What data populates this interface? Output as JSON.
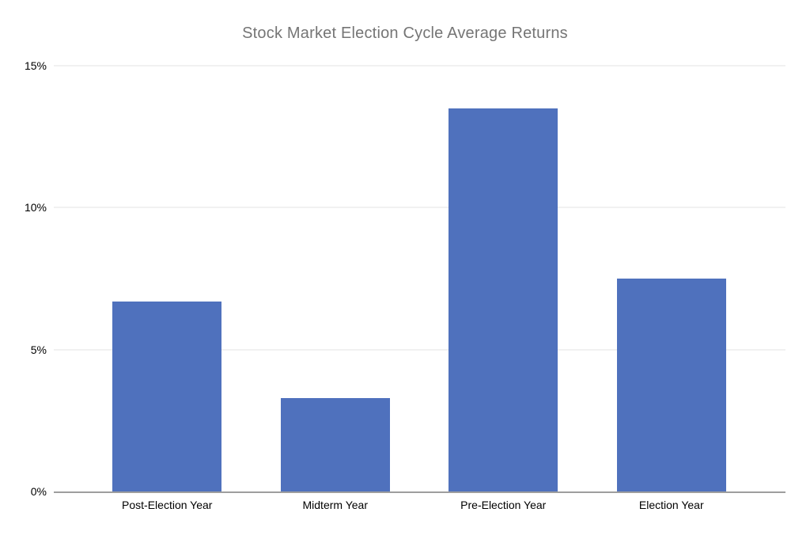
{
  "chart_data": {
    "type": "bar",
    "title": "Stock Market Election Cycle Average Returns",
    "categories": [
      "Post-Election Year",
      "Midterm Year",
      "Pre-Election Year",
      "Election Year"
    ],
    "values": [
      6.7,
      3.3,
      13.5,
      7.5
    ],
    "unit": "%",
    "xlabel": "",
    "ylabel": "",
    "ylim": [
      0,
      15
    ],
    "yticks": [
      0,
      5,
      10,
      15
    ],
    "ytick_labels": [
      "0%",
      "5%",
      "10%",
      "15%"
    ],
    "grid": true,
    "legend": false,
    "colors": {
      "bar": "#4f71bd",
      "title_text": "#757575",
      "axis_line": "#9e9e9e",
      "gridline": "#e3e3e3",
      "tick_text": "#000000",
      "background": "#ffffff"
    }
  }
}
